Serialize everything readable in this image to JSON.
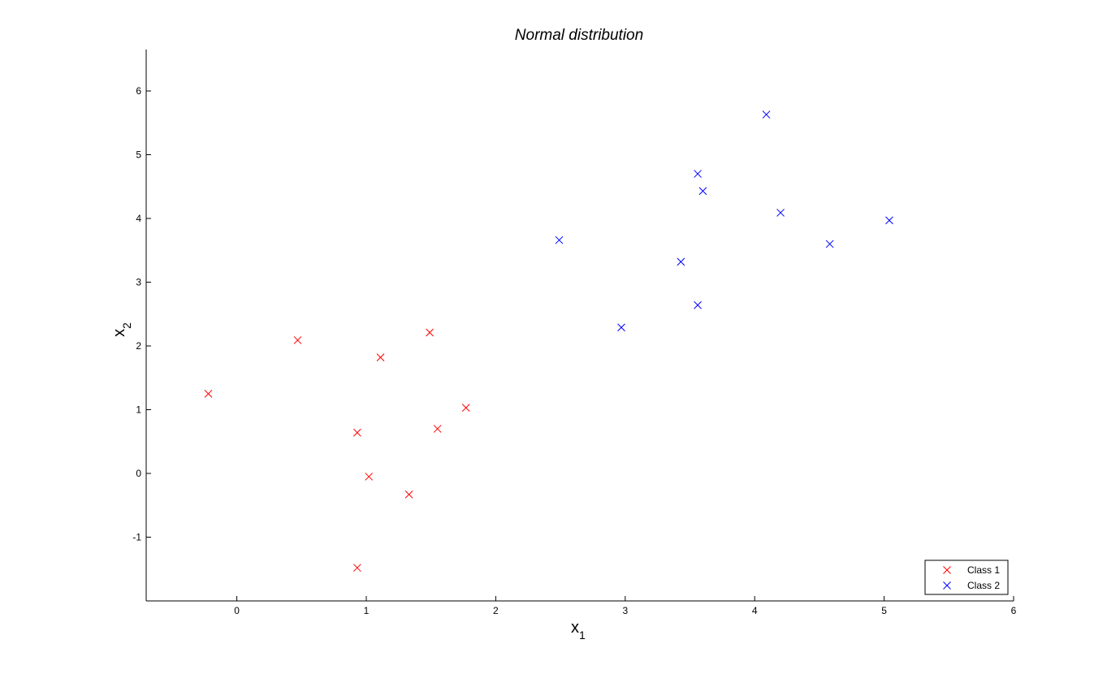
{
  "chart_data": {
    "type": "scatter",
    "title": "Normal distribution",
    "xlabel": {
      "base": "x",
      "sub": "1"
    },
    "ylabel": {
      "base": "x",
      "sub": "2"
    },
    "xlim": [
      -0.7,
      6
    ],
    "ylim": [
      -2,
      6.65
    ],
    "xticks": [
      0,
      1,
      2,
      3,
      4,
      5,
      6
    ],
    "yticks": [
      -1,
      0,
      1,
      2,
      3,
      4,
      5,
      6
    ],
    "grid": false,
    "marker": "x",
    "legend_position": "bottom-right",
    "series": [
      {
        "name": "Class 1",
        "color": "#ff0000",
        "points": [
          [
            -0.22,
            1.25
          ],
          [
            0.47,
            2.09
          ],
          [
            1.11,
            1.82
          ],
          [
            1.49,
            2.21
          ],
          [
            1.77,
            1.03
          ],
          [
            1.55,
            0.7
          ],
          [
            0.93,
            0.64
          ],
          [
            1.02,
            -0.05
          ],
          [
            1.33,
            -0.33
          ],
          [
            0.93,
            -1.48
          ]
        ]
      },
      {
        "name": "Class 2",
        "color": "#0000ff",
        "points": [
          [
            2.49,
            3.66
          ],
          [
            2.97,
            2.29
          ],
          [
            3.43,
            3.32
          ],
          [
            3.56,
            2.64
          ],
          [
            3.56,
            4.7
          ],
          [
            3.6,
            4.43
          ],
          [
            4.09,
            5.63
          ],
          [
            4.2,
            4.09
          ],
          [
            4.58,
            3.6
          ],
          [
            5.04,
            3.97
          ]
        ]
      }
    ]
  }
}
